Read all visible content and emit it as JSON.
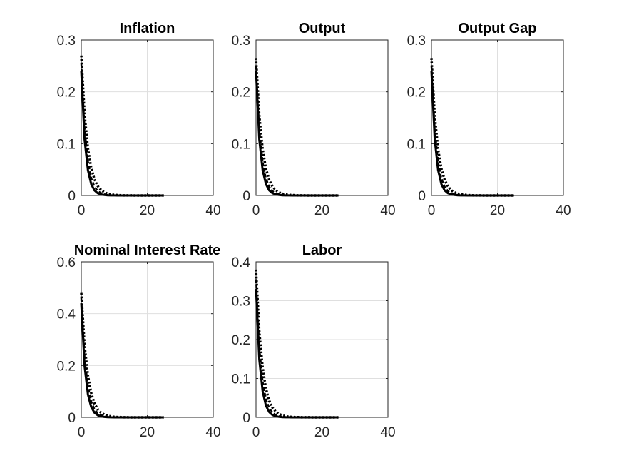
{
  "figure_background": "#ffffff",
  "colors": {
    "axis": "#262626",
    "grid": "#dfdfdf",
    "line": "#000000"
  },
  "chart_data": [
    {
      "type": "line",
      "title": "Inflation",
      "xlim": [
        0,
        40
      ],
      "ylim": [
        0,
        0.3
      ],
      "xticks": [
        0,
        20,
        40
      ],
      "yticks": [
        0,
        0.1,
        0.2,
        0.3
      ],
      "xtick_labels": [
        "0",
        "20",
        "40"
      ],
      "ytick_labels": [
        "0",
        "0.1",
        "0.2",
        "0.3"
      ],
      "grid": true,
      "x": [
        0,
        1,
        2,
        3,
        4,
        5,
        6,
        7,
        8,
        9,
        10,
        11,
        12,
        13,
        14,
        15,
        16,
        17,
        18,
        19,
        20,
        21,
        22,
        23,
        24,
        25
      ],
      "series": [
        {
          "style": "solid",
          "values": [
            0.24,
            0.108,
            0.049,
            0.022,
            0.0098,
            0.0044,
            0.002,
            0.0009,
            0.0004,
            0.0002,
            0.0001,
            0,
            0,
            0,
            0,
            0,
            0,
            0,
            0,
            0,
            0,
            0,
            0,
            0,
            0,
            0
          ]
        },
        {
          "style": "dotted",
          "values": [
            0.27,
            0.157,
            0.091,
            0.053,
            0.031,
            0.018,
            0.0104,
            0.006,
            0.0035,
            0.002,
            0.0012,
            0.0007,
            0.0004,
            0.0002,
            0.0001,
            0.0001,
            0,
            0,
            0,
            0,
            0,
            0,
            0,
            0,
            0,
            0
          ]
        },
        {
          "style": "dashed",
          "values": [
            0.255,
            0.13,
            0.066,
            0.034,
            0.017,
            0.0088,
            0.0045,
            0.0023,
            0.0012,
            0.0006,
            0.0003,
            0.0002,
            0.0001,
            0,
            0,
            0,
            0,
            0,
            0,
            0,
            0,
            0,
            0,
            0,
            0,
            0
          ]
        }
      ]
    },
    {
      "type": "line",
      "title": "Output",
      "xlim": [
        0,
        40
      ],
      "ylim": [
        0,
        0.3
      ],
      "xticks": [
        0,
        20,
        40
      ],
      "yticks": [
        0,
        0.1,
        0.2,
        0.3
      ],
      "xtick_labels": [
        "0",
        "20",
        "40"
      ],
      "ytick_labels": [
        "0",
        "0.1",
        "0.2",
        "0.3"
      ],
      "grid": true,
      "x": [
        0,
        1,
        2,
        3,
        4,
        5,
        6,
        7,
        8,
        9,
        10,
        11,
        12,
        13,
        14,
        15,
        16,
        17,
        18,
        19,
        20,
        21,
        22,
        23,
        24,
        25
      ],
      "series": [
        {
          "style": "solid",
          "values": [
            0.24,
            0.108,
            0.049,
            0.022,
            0.0098,
            0.0044,
            0.002,
            0.0009,
            0.0004,
            0.0002,
            0.0001,
            0,
            0,
            0,
            0,
            0,
            0,
            0,
            0,
            0,
            0,
            0,
            0,
            0,
            0,
            0
          ]
        },
        {
          "style": "dotted",
          "values": [
            0.265,
            0.154,
            0.089,
            0.052,
            0.03,
            0.0175,
            0.0101,
            0.0059,
            0.0034,
            0.002,
            0.0012,
            0.0007,
            0.0004,
            0.0002,
            0.0001,
            0.0001,
            0,
            0,
            0,
            0,
            0,
            0,
            0,
            0,
            0,
            0
          ]
        },
        {
          "style": "dashed",
          "values": [
            0.25,
            0.128,
            0.065,
            0.033,
            0.017,
            0.0086,
            0.0044,
            0.0022,
            0.0011,
            0.0006,
            0.0003,
            0.0002,
            0.0001,
            0,
            0,
            0,
            0,
            0,
            0,
            0,
            0,
            0,
            0,
            0,
            0,
            0
          ]
        }
      ]
    },
    {
      "type": "line",
      "title": "Output Gap",
      "xlim": [
        0,
        40
      ],
      "ylim": [
        0,
        0.3
      ],
      "xticks": [
        0,
        20,
        40
      ],
      "yticks": [
        0,
        0.1,
        0.2,
        0.3
      ],
      "xtick_labels": [
        "0",
        "20",
        "40"
      ],
      "ytick_labels": [
        "0",
        "0.1",
        "0.2",
        "0.3"
      ],
      "grid": true,
      "x": [
        0,
        1,
        2,
        3,
        4,
        5,
        6,
        7,
        8,
        9,
        10,
        11,
        12,
        13,
        14,
        15,
        16,
        17,
        18,
        19,
        20,
        21,
        22,
        23,
        24,
        25
      ],
      "series": [
        {
          "style": "solid",
          "values": [
            0.24,
            0.108,
            0.049,
            0.022,
            0.0098,
            0.0044,
            0.002,
            0.0009,
            0.0004,
            0.0002,
            0.0001,
            0,
            0,
            0,
            0,
            0,
            0,
            0,
            0,
            0,
            0,
            0,
            0,
            0,
            0,
            0
          ]
        },
        {
          "style": "dotted",
          "values": [
            0.265,
            0.154,
            0.089,
            0.052,
            0.03,
            0.0175,
            0.0101,
            0.0059,
            0.0034,
            0.002,
            0.0012,
            0.0007,
            0.0004,
            0.0002,
            0.0001,
            0.0001,
            0,
            0,
            0,
            0,
            0,
            0,
            0,
            0,
            0,
            0
          ]
        },
        {
          "style": "dashed",
          "values": [
            0.25,
            0.128,
            0.065,
            0.033,
            0.017,
            0.0086,
            0.0044,
            0.0022,
            0.0011,
            0.0006,
            0.0003,
            0.0002,
            0.0001,
            0,
            0,
            0,
            0,
            0,
            0,
            0,
            0,
            0,
            0,
            0,
            0,
            0
          ]
        }
      ]
    },
    {
      "type": "line",
      "title": "Nominal Interest Rate",
      "xlim": [
        0,
        40
      ],
      "ylim": [
        0,
        0.6
      ],
      "xticks": [
        0,
        20,
        40
      ],
      "yticks": [
        0,
        0.2,
        0.4,
        0.6
      ],
      "xtick_labels": [
        "0",
        "20",
        "40"
      ],
      "ytick_labels": [
        "0",
        "0.2",
        "0.4",
        "0.6"
      ],
      "grid": true,
      "x": [
        0,
        1,
        2,
        3,
        4,
        5,
        6,
        7,
        8,
        9,
        10,
        11,
        12,
        13,
        14,
        15,
        16,
        17,
        18,
        19,
        20,
        21,
        22,
        23,
        24,
        25
      ],
      "series": [
        {
          "style": "solid",
          "values": [
            0.44,
            0.198,
            0.089,
            0.04,
            0.018,
            0.0081,
            0.0036,
            0.0016,
            0.0007,
            0.0003,
            0.0001,
            0.0001,
            0,
            0,
            0,
            0,
            0,
            0,
            0,
            0,
            0,
            0,
            0,
            0,
            0,
            0
          ]
        },
        {
          "style": "dotted",
          "values": [
            0.48,
            0.278,
            0.161,
            0.094,
            0.054,
            0.031,
            0.018,
            0.0105,
            0.0061,
            0.0035,
            0.002,
            0.0012,
            0.0007,
            0.0004,
            0.0002,
            0.0001,
            0.0001,
            0,
            0,
            0,
            0,
            0,
            0,
            0,
            0,
            0
          ]
        },
        {
          "style": "dashed",
          "values": [
            0.46,
            0.235,
            0.12,
            0.061,
            0.031,
            0.016,
            0.0081,
            0.0041,
            0.0021,
            0.0011,
            0.0006,
            0.0003,
            0.0002,
            0.0001,
            0,
            0,
            0,
            0,
            0,
            0,
            0,
            0,
            0,
            0,
            0,
            0
          ]
        }
      ]
    },
    {
      "type": "line",
      "title": "Labor",
      "xlim": [
        0,
        40
      ],
      "ylim": [
        0,
        0.4
      ],
      "xticks": [
        0,
        20,
        40
      ],
      "yticks": [
        0,
        0.1,
        0.2,
        0.3,
        0.4
      ],
      "xtick_labels": [
        "0",
        "20",
        "40"
      ],
      "ytick_labels": [
        "0",
        "0.1",
        "0.2",
        "0.3",
        "0.4"
      ],
      "grid": true,
      "x": [
        0,
        1,
        2,
        3,
        4,
        5,
        6,
        7,
        8,
        9,
        10,
        11,
        12,
        13,
        14,
        15,
        16,
        17,
        18,
        19,
        20,
        21,
        22,
        23,
        24,
        25
      ],
      "series": [
        {
          "style": "solid",
          "values": [
            0.33,
            0.149,
            0.067,
            0.03,
            0.0135,
            0.0061,
            0.0027,
            0.0012,
            0.0005,
            0.0002,
            0.0001,
            0,
            0,
            0,
            0,
            0,
            0,
            0,
            0,
            0,
            0,
            0,
            0,
            0,
            0,
            0
          ]
        },
        {
          "style": "dotted",
          "values": [
            0.38,
            0.22,
            0.128,
            0.074,
            0.043,
            0.025,
            0.0145,
            0.0084,
            0.0049,
            0.0028,
            0.0016,
            0.0009,
            0.0005,
            0.0003,
            0.0002,
            0.0001,
            0.0001,
            0,
            0,
            0,
            0,
            0,
            0,
            0,
            0,
            0
          ]
        },
        {
          "style": "dashed",
          "values": [
            0.355,
            0.181,
            0.092,
            0.047,
            0.024,
            0.0122,
            0.0062,
            0.0032,
            0.0016,
            0.0008,
            0.0004,
            0.0002,
            0.0001,
            0,
            0,
            0,
            0,
            0,
            0,
            0,
            0,
            0,
            0,
            0,
            0,
            0
          ]
        }
      ]
    }
  ]
}
